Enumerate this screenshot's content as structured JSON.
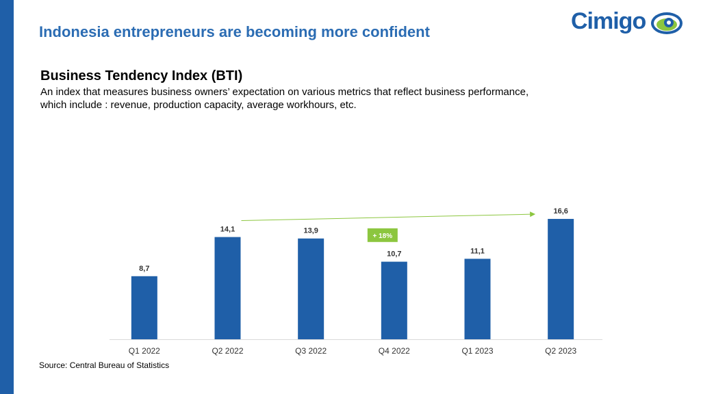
{
  "header": {
    "title": "Indonesia entrepreneurs are becoming more confident",
    "logo_text": "Cimigo"
  },
  "section": {
    "title": "Business Tendency Index (BTI)",
    "description": "An index that measures business owners’ expectation on various metrics that reflect business performance, which include : revenue, production capacity, average workhours, etc."
  },
  "chart_data": {
    "type": "bar",
    "categories": [
      "Q1 2022",
      "Q2 2022",
      "Q3 2022",
      "Q4 2022",
      "Q1 2023",
      "Q2 2023"
    ],
    "values": [
      8.7,
      14.1,
      13.9,
      10.7,
      11.1,
      16.6
    ],
    "value_labels": [
      "8,7",
      "14,1",
      "13,9",
      "10,7",
      "11,1",
      "16,6"
    ],
    "ylim": [
      0,
      20
    ],
    "grid": false,
    "bar_color": "#1f5fa8",
    "annotation": {
      "text": "+ 18%",
      "color": "#8cc63f",
      "from_category": "Q2 2022",
      "to_category": "Q2 2023"
    }
  },
  "footer": {
    "source": "Source: Central Bureau of Statistics"
  },
  "colors": {
    "accent": "#1f5fa8",
    "title": "#2b6cb3",
    "logo_green": "#8cc63f"
  }
}
